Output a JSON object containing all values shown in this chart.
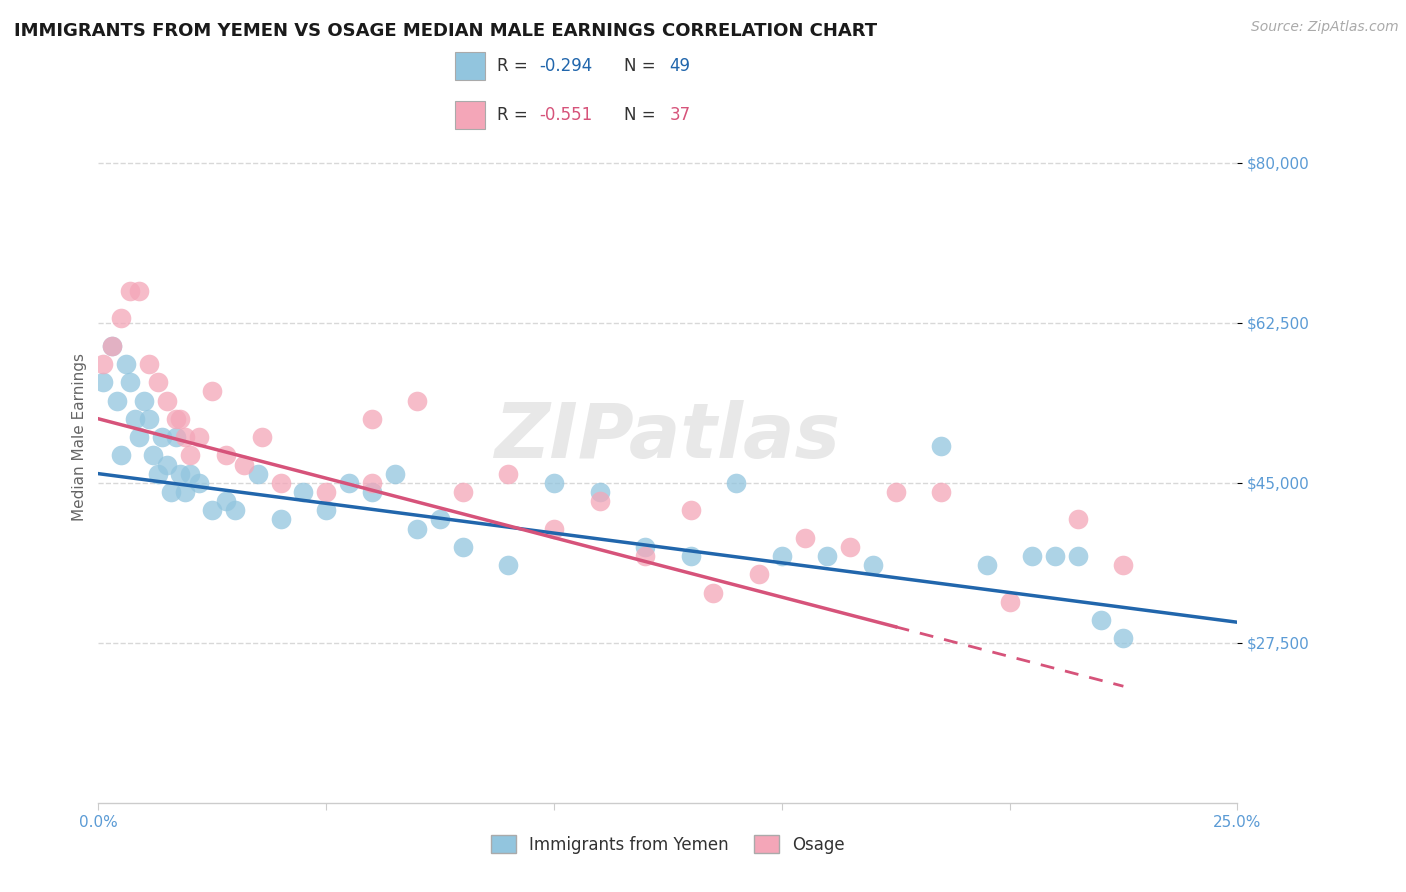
{
  "title": "IMMIGRANTS FROM YEMEN VS OSAGE MEDIAN MALE EARNINGS CORRELATION CHART",
  "source": "Source: ZipAtlas.com",
  "ylabel": "Median Male Earnings",
  "xlim": [
    0.0,
    0.25
  ],
  "ylim": [
    10000,
    90000
  ],
  "xticks": [
    0.0,
    0.05,
    0.1,
    0.15,
    0.2,
    0.25
  ],
  "xticklabels": [
    "0.0%",
    "",
    "",
    "",
    "",
    "25.0%"
  ],
  "yticks": [
    27500,
    45000,
    62500,
    80000
  ],
  "yticklabels": [
    "$27,500",
    "$45,000",
    "$62,500",
    "$80,000"
  ],
  "legend_bottom_label1": "Immigrants from Yemen",
  "legend_bottom_label2": "Osage",
  "watermark": "ZIPatlas",
  "color_blue": "#92c5de",
  "color_pink": "#f4a6b8",
  "color_blue_line": "#2166ac",
  "color_pink_line": "#d6537a",
  "color_axis_ticks": "#5b9bd5",
  "color_title": "#1a1a1a",
  "background_color": "#ffffff",
  "grid_color": "#d8d8d8",
  "blue_x": [
    0.001,
    0.003,
    0.004,
    0.005,
    0.006,
    0.007,
    0.008,
    0.009,
    0.01,
    0.011,
    0.012,
    0.013,
    0.014,
    0.015,
    0.016,
    0.017,
    0.018,
    0.019,
    0.02,
    0.022,
    0.025,
    0.028,
    0.03,
    0.035,
    0.04,
    0.045,
    0.05,
    0.055,
    0.06,
    0.065,
    0.07,
    0.075,
    0.08,
    0.09,
    0.1,
    0.11,
    0.12,
    0.13,
    0.14,
    0.15,
    0.16,
    0.17,
    0.185,
    0.195,
    0.205,
    0.21,
    0.215,
    0.22,
    0.225
  ],
  "blue_y": [
    56000,
    60000,
    54000,
    48000,
    58000,
    56000,
    52000,
    50000,
    54000,
    52000,
    48000,
    46000,
    50000,
    47000,
    44000,
    50000,
    46000,
    44000,
    46000,
    45000,
    42000,
    43000,
    42000,
    46000,
    41000,
    44000,
    42000,
    45000,
    44000,
    46000,
    40000,
    41000,
    38000,
    36000,
    45000,
    44000,
    38000,
    37000,
    45000,
    37000,
    37000,
    36000,
    49000,
    36000,
    37000,
    37000,
    37000,
    30000,
    28000
  ],
  "pink_x": [
    0.001,
    0.003,
    0.005,
    0.007,
    0.009,
    0.011,
    0.013,
    0.015,
    0.017,
    0.018,
    0.019,
    0.02,
    0.022,
    0.025,
    0.028,
    0.032,
    0.036,
    0.04,
    0.05,
    0.06,
    0.07,
    0.08,
    0.09,
    0.1,
    0.11,
    0.12,
    0.13,
    0.145,
    0.155,
    0.165,
    0.175,
    0.185,
    0.2,
    0.215,
    0.225,
    0.135,
    0.06
  ],
  "pink_y": [
    58000,
    60000,
    63000,
    66000,
    66000,
    58000,
    56000,
    54000,
    52000,
    52000,
    50000,
    48000,
    50000,
    55000,
    48000,
    47000,
    50000,
    45000,
    44000,
    45000,
    54000,
    44000,
    46000,
    40000,
    43000,
    37000,
    42000,
    35000,
    39000,
    38000,
    44000,
    44000,
    32000,
    41000,
    36000,
    33000,
    52000
  ]
}
